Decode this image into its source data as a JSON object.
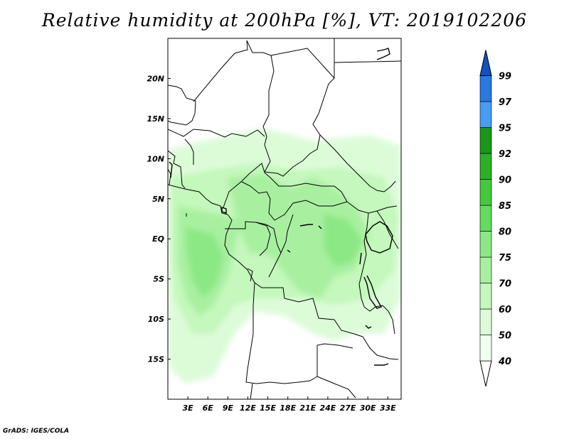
{
  "title": "Relative humidity at 200hPa [%], VT: 2019102206",
  "credit": "GrADS: IGES/COLA",
  "map": {
    "lat_range": [
      -20,
      25
    ],
    "lon_range": [
      0,
      35
    ],
    "lat_labels": [
      "20N",
      "15N",
      "10N",
      "5N",
      "EQ",
      "5S",
      "10S",
      "15S"
    ],
    "lon_labels": [
      "3E",
      "6E",
      "9E",
      "12E",
      "15E",
      "18E",
      "21E",
      "24E",
      "27E",
      "30E",
      "33E"
    ]
  },
  "colorbar": {
    "labels": [
      "40",
      "50",
      "60",
      "70",
      "75",
      "80",
      "85",
      "90",
      "92",
      "95",
      "97",
      "99"
    ],
    "colors": [
      "#f0fff0",
      "#dcfcd8",
      "#c4f8bc",
      "#a8f0a0",
      "#8ce884",
      "#64dc5c",
      "#46c83e",
      "#2cb028",
      "#1a9618",
      "#4a9cf0",
      "#2a78e0",
      "#1450c4"
    ],
    "under_color": "#ffffff"
  }
}
